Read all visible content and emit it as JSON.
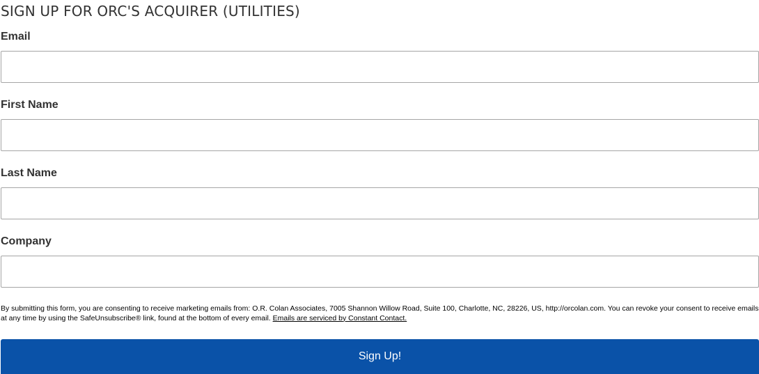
{
  "form": {
    "title": "SIGN UP FOR ORC'S ACQUIRER (UTILITIES)",
    "fields": [
      {
        "label": "Email",
        "value": "",
        "placeholder": ""
      },
      {
        "label": "First Name",
        "value": "",
        "placeholder": ""
      },
      {
        "label": "Last Name",
        "value": "",
        "placeholder": ""
      },
      {
        "label": "Company",
        "value": "",
        "placeholder": ""
      }
    ],
    "consent_text": "By submitting this form, you are consenting to receive marketing emails from: O.R. Colan Associates, 7005 Shannon Willow Road, Suite 100, Charlotte, NC, 28226, US, http://orcolan.com. You can revoke your consent to receive emails at any time by using the SafeUnsubscribe® link, found at the bottom of every email. ",
    "consent_link_text": "Emails are serviced by Constant Contact.",
    "submit_label": "Sign Up!"
  },
  "colors": {
    "button_background": "#0a52a8",
    "button_text": "#ffffff",
    "text": "#323232",
    "input_border": "#a5a5a5"
  }
}
